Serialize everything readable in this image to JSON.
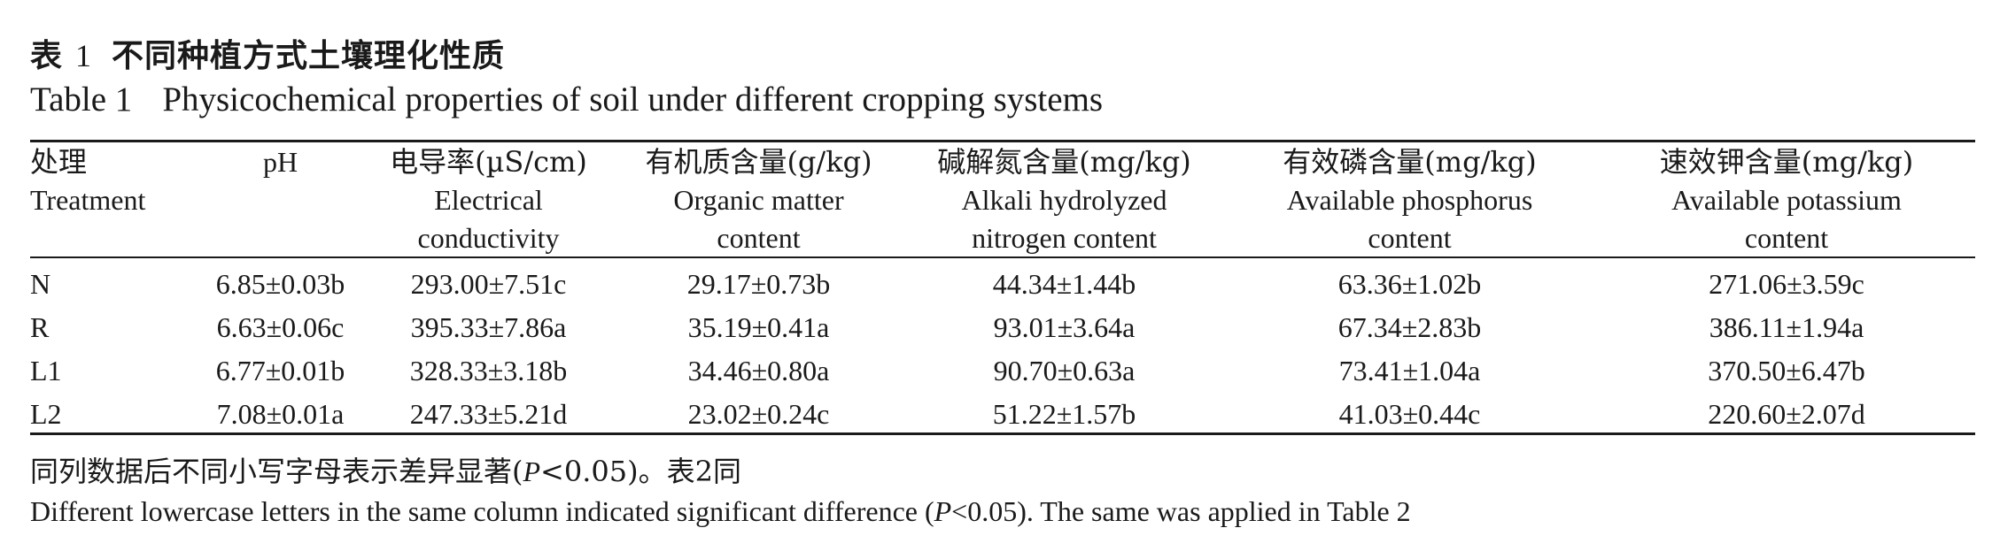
{
  "caption": {
    "cn_label": "表",
    "cn_number": "1",
    "cn_title": "不同种植方式土壤理化性质",
    "en_label": "Table 1",
    "en_title": "Physicochemical properties of soil under different cropping systems"
  },
  "table": {
    "headers": [
      {
        "cn": "处理",
        "en": [
          "Treatment"
        ]
      },
      {
        "cn": "pH",
        "en": []
      },
      {
        "cn": "电导率(µS/cm)",
        "en": [
          "Electrical",
          "conductivity"
        ]
      },
      {
        "cn": "有机质含量(g/kg)",
        "en": [
          "Organic matter",
          "content"
        ]
      },
      {
        "cn": "碱解氮含量(mg/kg)",
        "en": [
          "Alkali hydrolyzed",
          "nitrogen content"
        ]
      },
      {
        "cn": "有效磷含量(mg/kg)",
        "en": [
          "Available phosphorus",
          "content"
        ]
      },
      {
        "cn": "速效钾含量(mg/kg)",
        "en": [
          "Available potassium",
          "content"
        ]
      }
    ],
    "rows": [
      [
        "N",
        "6.85±0.03b",
        "293.00±7.51c",
        "29.17±0.73b",
        "44.34±1.44b",
        "63.36±1.02b",
        "271.06±3.59c"
      ],
      [
        "R",
        "6.63±0.06c",
        "395.33±7.86a",
        "35.19±0.41a",
        "93.01±3.64a",
        "67.34±2.83b",
        "386.11±1.94a"
      ],
      [
        "L1",
        "6.77±0.01b",
        "328.33±3.18b",
        "34.46±0.80a",
        "90.70±0.63a",
        "73.41±1.04a",
        "370.50±6.47b"
      ],
      [
        "L2",
        "7.08±0.01a",
        "247.33±5.21d",
        "23.02±0.24c",
        "51.22±1.57b",
        "41.03±0.44c",
        "220.60±2.07d"
      ]
    ]
  },
  "notes": {
    "cn_before": "同列数据后不同小写字母表示差异显著(",
    "cn_p": "P",
    "cn_after": "<0.05)。表2同",
    "en_before": "Different lowercase letters in the same column indicated significant difference (",
    "en_p": "P",
    "en_after": "<0.05). The same was applied in Table 2"
  }
}
